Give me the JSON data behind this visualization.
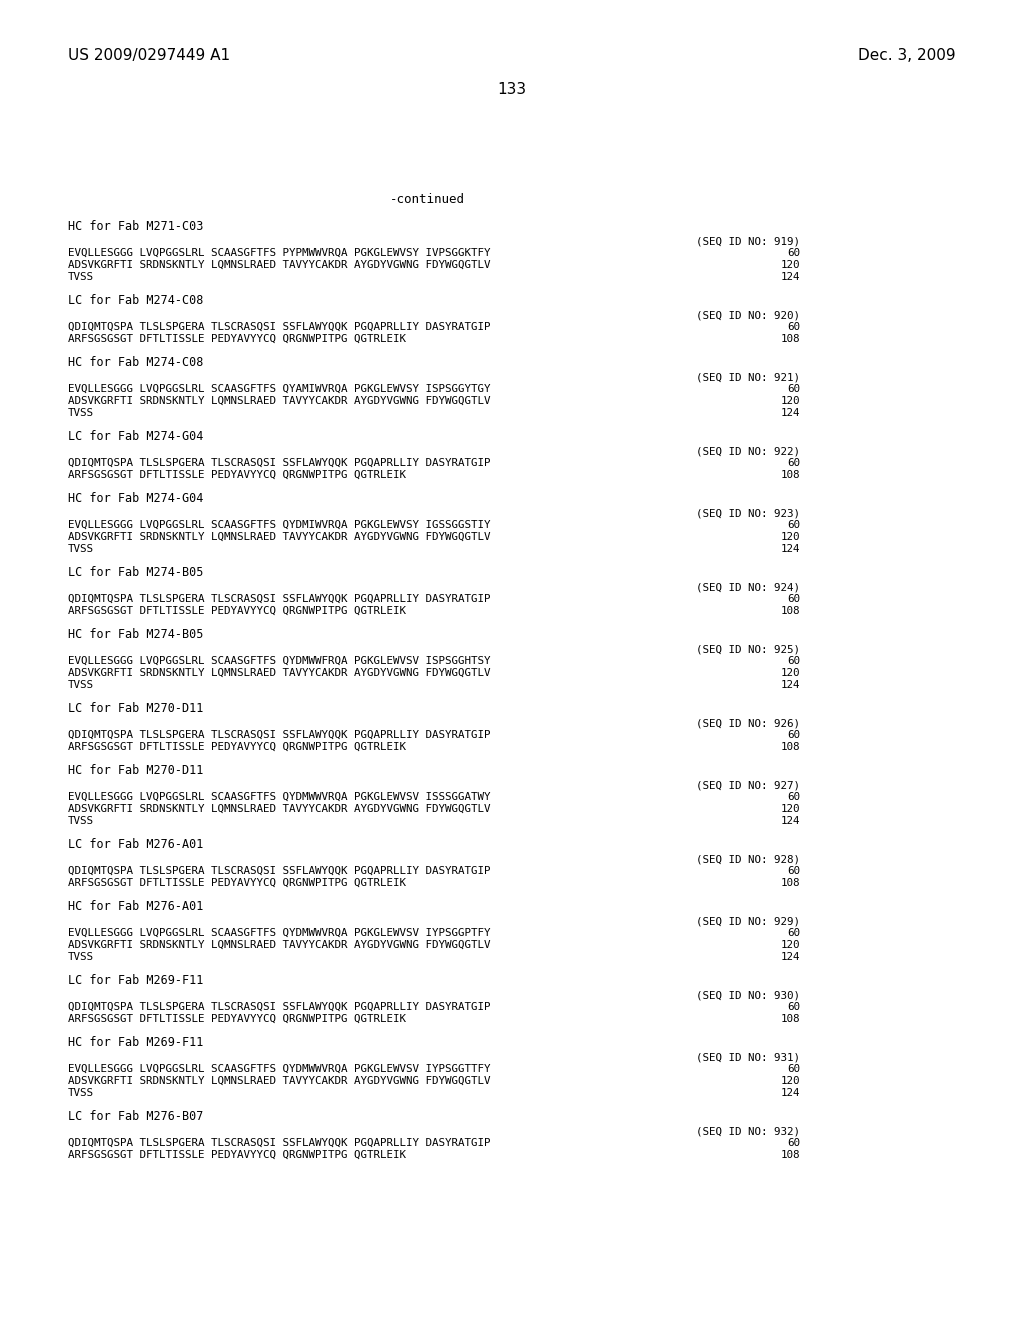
{
  "header_left": "US 2009/0297449 A1",
  "header_right": "Dec. 3, 2009",
  "page_number": "133",
  "continued_label": "-continued",
  "background_color": "#ffffff",
  "text_color": "#000000",
  "font_size_header": 11,
  "font_size_page": 11,
  "font_size_continued": 9,
  "font_size_label": 8.5,
  "font_size_seq": 7.8,
  "blocks": [
    {
      "label": "HC for Fab M271-C03",
      "seq_id": "(SEQ ID NO: 919)",
      "lines": [
        [
          "EVQLLESGGG LVQPGGSLRL SCAASGFTFS PYPMWWVRQA PGKGLEWVSY IVPSGGKTFY",
          "60"
        ],
        [
          "ADSVKGRFTI SRDNSKNTLY LQMNSLRAED TAVYYCAKDR AYGDYVGWNG FDYWGQGTLV",
          "120"
        ],
        [
          "TVSS",
          "124"
        ]
      ]
    },
    {
      "label": "LC for Fab M274-C08",
      "seq_id": "(SEQ ID NO: 920)",
      "lines": [
        [
          "QDIQMTQSPA TLSLSPGERA TLSCRASQSI SSFLAWYQQK PGQAPRLLIY DASYRATGIP",
          "60"
        ],
        [
          "ARFSGSGSGT DFTLTISSLE PEDYAVYYCQ QRGNWPITPG QGTRLEIK",
          "108"
        ]
      ]
    },
    {
      "label": "HC for Fab M274-C08",
      "seq_id": "(SEQ ID NO: 921)",
      "lines": [
        [
          "EVQLLESGGG LVQPGGSLRL SCAASGFTFS QYAMIWVRQA PGKGLEWVSY ISPSGGYTGY",
          "60"
        ],
        [
          "ADSVKGRFTI SRDNSKNTLY LQMNSLRAED TAVYYCAKDR AYGDYVGWNG FDYWGQGTLV",
          "120"
        ],
        [
          "TVSS",
          "124"
        ]
      ]
    },
    {
      "label": "LC for Fab M274-G04",
      "seq_id": "(SEQ ID NO: 922)",
      "lines": [
        [
          "QDIQMTQSPA TLSLSPGERA TLSCRASQSI SSFLAWYQQK PGQAPRLLIY DASYRATGIP",
          "60"
        ],
        [
          "ARFSGSGSGT DFTLTISSLE PEDYAVYYCQ QRGNWPITPG QGTRLEIK",
          "108"
        ]
      ]
    },
    {
      "label": "HC for Fab M274-G04",
      "seq_id": "(SEQ ID NO: 923)",
      "lines": [
        [
          "EVQLLESGGG LVQPGGSLRL SCAASGFTFS QYDMIWVRQA PGKGLEWVSY IGSSGGSTIY",
          "60"
        ],
        [
          "ADSVKGRFTI SRDNSKNTLY LQMNSLRAED TAVYYCAKDR AYGDYVGWNG FDYWGQGTLV",
          "120"
        ],
        [
          "TVSS",
          "124"
        ]
      ]
    },
    {
      "label": "LC for Fab M274-B05",
      "seq_id": "(SEQ ID NO: 924)",
      "lines": [
        [
          "QDIQMTQSPA TLSLSPGERA TLSCRASQSI SSFLAWYQQK PGQAPRLLIY DASYRATGIP",
          "60"
        ],
        [
          "ARFSGSGSGT DFTLTISSLE PEDYAVYYCQ QRGNWPITPG QGTRLEIK",
          "108"
        ]
      ]
    },
    {
      "label": "HC for Fab M274-B05",
      "seq_id": "(SEQ ID NO: 925)",
      "lines": [
        [
          "EVQLLESGGG LVQPGGSLRL SCAASGFTFS QYDMWWFRQA PGKGLEWVSV ISPSGGHTSY",
          "60"
        ],
        [
          "ADSVKGRFTI SRDNSKNTLY LQMNSLRAED TAVYYCAKDR AYGDYVGWNG FDYWGQGTLV",
          "120"
        ],
        [
          "TVSS",
          "124"
        ]
      ]
    },
    {
      "label": "LC for Fab M270-D11",
      "seq_id": "(SEQ ID NO: 926)",
      "lines": [
        [
          "QDIQMTQSPA TLSLSPGERA TLSCRASQSI SSFLAWYQQK PGQAPRLLIY DASYRATGIP",
          "60"
        ],
        [
          "ARFSGSGSGT DFTLTISSLE PEDYAVYYCQ QRGNWPITPG QGTRLEIK",
          "108"
        ]
      ]
    },
    {
      "label": "HC for Fab M270-D11",
      "seq_id": "(SEQ ID NO: 927)",
      "lines": [
        [
          "EVQLLESGGG LVQPGGSLRL SCAASGFTFS QYDMWWVRQA PGKGLEWVSV ISSSGGATWY",
          "60"
        ],
        [
          "ADSVKGRFTI SRDNSKNTLY LQMNSLRAED TAVYYCAKDR AYGDYVGWNG FDYWGQGTLV",
          "120"
        ],
        [
          "TVSS",
          "124"
        ]
      ]
    },
    {
      "label": "LC for Fab M276-A01",
      "seq_id": "(SEQ ID NO: 928)",
      "lines": [
        [
          "QDIQMTQSPA TLSLSPGERA TLSCRASQSI SSFLAWYQQK PGQAPRLLIY DASYRATGIP",
          "60"
        ],
        [
          "ARFSGSGSGT DFTLTISSLE PEDYAVYYCQ QRGNWPITPG QGTRLEIK",
          "108"
        ]
      ]
    },
    {
      "label": "HC for Fab M276-A01",
      "seq_id": "(SEQ ID NO: 929)",
      "lines": [
        [
          "EVQLLESGGG LVQPGGSLRL SCAASGFTFS QYDMWWVRQA PGKGLEWVSV IYPSGGPTFY",
          "60"
        ],
        [
          "ADSVKGRFTI SRDNSKNTLY LQMNSLRAED TAVYYCAKDR AYGDYVGWNG FDYWGQGTLV",
          "120"
        ],
        [
          "TVSS",
          "124"
        ]
      ]
    },
    {
      "label": "LC for Fab M269-F11",
      "seq_id": "(SEQ ID NO: 930)",
      "lines": [
        [
          "QDIQMTQSPA TLSLSPGERA TLSCRASQSI SSFLAWYQQK PGQAPRLLIY DASYRATGIP",
          "60"
        ],
        [
          "ARFSGSGSGT DFTLTISSLE PEDYAVYYCQ QRGNWPITPG QGTRLEIK",
          "108"
        ]
      ]
    },
    {
      "label": "HC for Fab M269-F11",
      "seq_id": "(SEQ ID NO: 931)",
      "lines": [
        [
          "EVQLLESGGG LVQPGGSLRL SCAASGFTFS QYDMWWVRQA PGKGLEWVSV IYPSGGTTFY",
          "60"
        ],
        [
          "ADSVKGRFTI SRDNSKNTLY LQMNSLRAED TAVYYCAKDR AYGDYVGWNG FDYWGQGTLV",
          "120"
        ],
        [
          "TVSS",
          "124"
        ]
      ]
    },
    {
      "label": "LC for Fab M276-B07",
      "seq_id": "(SEQ ID NO: 932)",
      "lines": [
        [
          "QDIQMTQSPA TLSLSPGERA TLSCRASQSI SSFLAWYQQK PGQAPRLLIY DASYRATGIP",
          "60"
        ],
        [
          "ARFSGSGSGT DFTLTISSLE PEDYAVYYCQ QRGNWPITPG QGTRLEIK",
          "108"
        ]
      ]
    }
  ]
}
